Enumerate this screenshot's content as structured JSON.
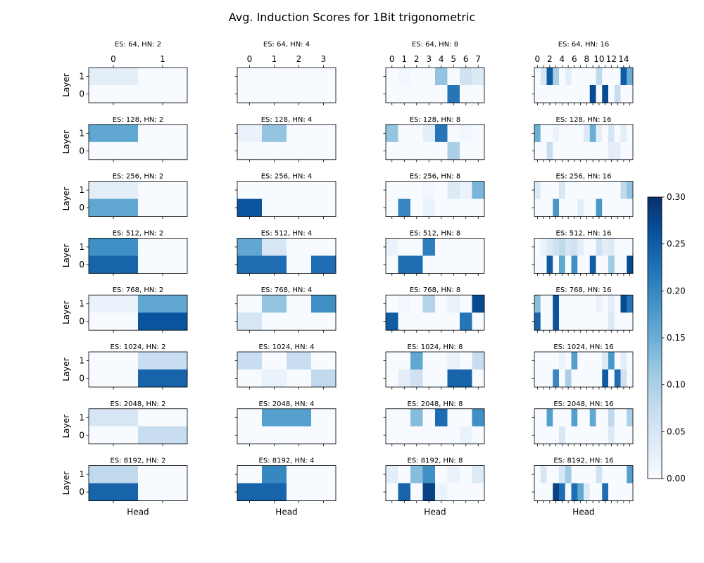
{
  "chart_data": [
    {
      "type": "heatmap",
      "title": "ES: 64, HN: 2",
      "ylabel": "Layer",
      "xlabel": "",
      "rows": [
        1,
        0
      ],
      "x_tick_labels": [
        "0",
        "1"
      ],
      "values": [
        [
          0.03,
          0.0
        ],
        [
          0.0,
          0.0
        ]
      ]
    },
    {
      "type": "heatmap",
      "title": "ES: 64, HN: 4",
      "ylabel": "",
      "xlabel": "",
      "rows": [
        1,
        0
      ],
      "x_tick_labels": [
        "0",
        "1",
        "2",
        "3"
      ],
      "values": [
        [
          0.0,
          0.0,
          0.0,
          0.0
        ],
        [
          0.0,
          0.0,
          0.0,
          0.0
        ]
      ]
    },
    {
      "type": "heatmap",
      "title": "ES: 64, HN: 8",
      "ylabel": "",
      "xlabel": "",
      "rows": [
        1,
        0
      ],
      "x_tick_labels": [
        "0",
        "1",
        "2",
        "3",
        "4",
        "5",
        "6",
        "7"
      ],
      "values": [
        [
          0.0,
          0.01,
          0.0,
          0.0,
          0.12,
          0.0,
          0.06,
          0.04
        ],
        [
          0.0,
          0.0,
          0.0,
          0.0,
          0.0,
          0.22,
          0.0,
          0.0
        ]
      ]
    },
    {
      "type": "heatmap",
      "title": "ES: 64, HN: 16",
      "ylabel": "",
      "xlabel": "",
      "rows": [
        1,
        0
      ],
      "x_tick_labels": [
        "0",
        "",
        "2",
        "",
        "4",
        "",
        "6",
        "",
        "8",
        "",
        "10",
        "",
        "12",
        "",
        "14",
        ""
      ],
      "values": [
        [
          0.0,
          0.05,
          0.25,
          0.1,
          0.0,
          0.03,
          0.0,
          0.0,
          0.0,
          0.0,
          0.08,
          0.0,
          0.0,
          0.0,
          0.25,
          0.15
        ],
        [
          0.0,
          0.0,
          0.0,
          0.0,
          0.0,
          0.0,
          0.0,
          0.0,
          0.0,
          0.27,
          0.0,
          0.27,
          0.0,
          0.07,
          0.0,
          0.0
        ]
      ]
    },
    {
      "type": "heatmap",
      "title": "ES: 128, HN: 2",
      "ylabel": "Layer",
      "xlabel": "",
      "rows": [
        1,
        0
      ],
      "x_tick_labels": [],
      "values": [
        [
          0.16,
          0.0
        ],
        [
          0.0,
          0.0
        ]
      ]
    },
    {
      "type": "heatmap",
      "title": "ES: 128, HN: 4",
      "ylabel": "",
      "xlabel": "",
      "rows": [
        1,
        0
      ],
      "x_tick_labels": [],
      "values": [
        [
          0.02,
          0.12,
          0.0,
          0.0
        ],
        [
          0.0,
          0.0,
          0.0,
          0.0
        ]
      ]
    },
    {
      "type": "heatmap",
      "title": "ES: 128, HN: 8",
      "ylabel": "",
      "xlabel": "",
      "rows": [
        1,
        0
      ],
      "x_tick_labels": [],
      "values": [
        [
          0.12,
          0.0,
          0.0,
          0.03,
          0.22,
          0.0,
          0.01,
          0.0
        ],
        [
          0.0,
          0.0,
          0.0,
          0.0,
          0.0,
          0.1,
          0.0,
          0.0
        ]
      ]
    },
    {
      "type": "heatmap",
      "title": "ES: 128, HN: 16",
      "ylabel": "",
      "xlabel": "",
      "rows": [
        1,
        0
      ],
      "x_tick_labels": [],
      "values": [
        [
          0.15,
          0.0,
          0.0,
          0.02,
          0.0,
          0.0,
          0.0,
          0.0,
          0.04,
          0.15,
          0.03,
          0.0,
          0.05,
          0.0,
          0.03,
          0.0
        ],
        [
          0.0,
          0.0,
          0.07,
          0.0,
          0.0,
          0.0,
          0.0,
          0.0,
          0.0,
          0.0,
          0.0,
          0.0,
          0.03,
          0.03,
          0.0,
          0.0
        ]
      ]
    },
    {
      "type": "heatmap",
      "title": "ES: 256, HN: 2",
      "ylabel": "Layer",
      "xlabel": "",
      "rows": [
        1,
        0
      ],
      "x_tick_labels": [],
      "values": [
        [
          0.03,
          0.0
        ],
        [
          0.16,
          0.0
        ]
      ]
    },
    {
      "type": "heatmap",
      "title": "ES: 256, HN: 4",
      "ylabel": "",
      "xlabel": "",
      "rows": [
        1,
        0
      ],
      "x_tick_labels": [],
      "values": [
        [
          0.0,
          0.0,
          0.0,
          0.0
        ],
        [
          0.26,
          0.0,
          0.0,
          0.0
        ]
      ]
    },
    {
      "type": "heatmap",
      "title": "ES: 256, HN: 8",
      "ylabel": "",
      "xlabel": "",
      "rows": [
        1,
        0
      ],
      "x_tick_labels": [],
      "values": [
        [
          0.0,
          0.0,
          0.0,
          0.01,
          0.0,
          0.04,
          0.02,
          0.14
        ],
        [
          0.0,
          0.2,
          0.0,
          0.02,
          0.0,
          0.0,
          0.0,
          0.0
        ]
      ]
    },
    {
      "type": "heatmap",
      "title": "ES: 256, HN: 16",
      "ylabel": "",
      "xlabel": "",
      "rows": [
        1,
        0
      ],
      "x_tick_labels": [],
      "values": [
        [
          0.04,
          0.0,
          0.0,
          0.0,
          0.05,
          0.0,
          0.0,
          0.0,
          0.0,
          0.0,
          0.0,
          0.0,
          0.0,
          0.0,
          0.08,
          0.12
        ],
        [
          0.0,
          0.0,
          0.0,
          0.18,
          0.0,
          0.0,
          0.0,
          0.03,
          0.0,
          0.0,
          0.18,
          0.0,
          0.0,
          0.0,
          0.0,
          0.0
        ]
      ]
    },
    {
      "type": "heatmap",
      "title": "ES: 512, HN: 2",
      "ylabel": "Layer",
      "xlabel": "",
      "rows": [
        1,
        0
      ],
      "x_tick_labels": [],
      "values": [
        [
          0.19,
          0.0
        ],
        [
          0.24,
          0.0
        ]
      ]
    },
    {
      "type": "heatmap",
      "title": "ES: 512, HN: 4",
      "ylabel": "",
      "xlabel": "",
      "rows": [
        1,
        0
      ],
      "x_tick_labels": [],
      "values": [
        [
          0.16,
          0.05,
          0.0,
          0.0
        ],
        [
          0.23,
          0.23,
          0.0,
          0.23
        ]
      ]
    },
    {
      "type": "heatmap",
      "title": "ES: 512, HN: 8",
      "ylabel": "",
      "xlabel": "",
      "rows": [
        1,
        0
      ],
      "x_tick_labels": [],
      "values": [
        [
          0.02,
          0.0,
          0.0,
          0.21,
          0.0,
          0.0,
          0.0,
          0.0
        ],
        [
          0.0,
          0.23,
          0.23,
          0.0,
          0.0,
          0.0,
          0.0,
          0.0
        ]
      ]
    },
    {
      "type": "heatmap",
      "title": "ES: 512, HN: 16",
      "ylabel": "",
      "xlabel": "",
      "rows": [
        1,
        0
      ],
      "x_tick_labels": [],
      "values": [
        [
          0.0,
          0.02,
          0.04,
          0.06,
          0.08,
          0.05,
          0.06,
          0.03,
          0.0,
          0.0,
          0.06,
          0.03,
          0.04,
          0.0,
          0.0,
          0.0
        ],
        [
          0.0,
          0.0,
          0.25,
          0.0,
          0.16,
          0.0,
          0.19,
          0.0,
          0.0,
          0.25,
          0.0,
          0.0,
          0.11,
          0.0,
          0.0,
          0.27
        ]
      ]
    },
    {
      "type": "heatmap",
      "title": "ES: 768, HN: 2",
      "ylabel": "Layer",
      "xlabel": "",
      "rows": [
        1,
        0
      ],
      "x_tick_labels": [],
      "values": [
        [
          0.02,
          0.16
        ],
        [
          0.0,
          0.26
        ]
      ]
    },
    {
      "type": "heatmap",
      "title": "ES: 768, HN: 4",
      "ylabel": "",
      "xlabel": "",
      "rows": [
        1,
        0
      ],
      "x_tick_labels": [],
      "values": [
        [
          0.0,
          0.12,
          0.0,
          0.19
        ],
        [
          0.05,
          0.0,
          0.0,
          0.0
        ]
      ]
    },
    {
      "type": "heatmap",
      "title": "ES: 768, HN: 8",
      "ylabel": "",
      "xlabel": "",
      "rows": [
        1,
        0
      ],
      "x_tick_labels": [],
      "values": [
        [
          0.0,
          0.01,
          0.0,
          0.09,
          0.0,
          0.02,
          0.0,
          0.27
        ],
        [
          0.25,
          0.0,
          0.0,
          0.0,
          0.0,
          0.0,
          0.22,
          0.0
        ]
      ]
    },
    {
      "type": "heatmap",
      "title": "ES: 768, HN: 16",
      "ylabel": "",
      "xlabel": "",
      "rows": [
        1,
        0
      ],
      "x_tick_labels": [],
      "values": [
        [
          0.13,
          0.0,
          0.0,
          0.26,
          0.0,
          0.0,
          0.0,
          0.0,
          0.0,
          0.0,
          0.02,
          0.0,
          0.03,
          0.0,
          0.27,
          0.22
        ],
        [
          0.24,
          0.0,
          0.0,
          0.26,
          0.0,
          0.0,
          0.0,
          0.0,
          0.0,
          0.0,
          0.0,
          0.0,
          0.04,
          0.0,
          0.0,
          0.0
        ]
      ]
    },
    {
      "type": "heatmap",
      "title": "ES: 1024, HN: 2",
      "ylabel": "Layer",
      "xlabel": "",
      "rows": [
        1,
        0
      ],
      "x_tick_labels": [],
      "values": [
        [
          0.0,
          0.07
        ],
        [
          0.0,
          0.24
        ]
      ]
    },
    {
      "type": "heatmap",
      "title": "ES: 1024, HN: 4",
      "ylabel": "",
      "xlabel": "",
      "rows": [
        1,
        0
      ],
      "x_tick_labels": [],
      "values": [
        [
          0.07,
          0.0,
          0.07,
          0.0
        ],
        [
          0.0,
          0.02,
          0.0,
          0.08
        ]
      ]
    },
    {
      "type": "heatmap",
      "title": "ES: 1024, HN: 8",
      "ylabel": "",
      "xlabel": "",
      "rows": [
        1,
        0
      ],
      "x_tick_labels": [],
      "values": [
        [
          0.0,
          0.0,
          0.16,
          0.0,
          0.0,
          0.02,
          0.0,
          0.07
        ],
        [
          0.0,
          0.03,
          0.06,
          0.0,
          0.0,
          0.24,
          0.24,
          0.0
        ]
      ]
    },
    {
      "type": "heatmap",
      "title": "ES: 1024, HN: 16",
      "ylabel": "",
      "xlabel": "",
      "rows": [
        1,
        0
      ],
      "x_tick_labels": [],
      "values": [
        [
          0.0,
          0.0,
          0.0,
          0.0,
          0.02,
          0.0,
          0.17,
          0.0,
          0.0,
          0.0,
          0.0,
          0.04,
          0.18,
          0.0,
          0.03,
          0.0
        ],
        [
          0.0,
          0.0,
          0.0,
          0.2,
          0.0,
          0.1,
          0.0,
          0.0,
          0.0,
          0.0,
          0.0,
          0.25,
          0.0,
          0.23,
          0.06,
          0.0
        ]
      ]
    },
    {
      "type": "heatmap",
      "title": "ES: 2048, HN: 2",
      "ylabel": "Layer",
      "xlabel": "",
      "rows": [
        1,
        0
      ],
      "x_tick_labels": [],
      "values": [
        [
          0.05,
          0.0
        ],
        [
          0.0,
          0.07
        ]
      ]
    },
    {
      "type": "heatmap",
      "title": "ES: 2048, HN: 4",
      "ylabel": "",
      "xlabel": "",
      "rows": [
        1,
        0
      ],
      "x_tick_labels": [],
      "values": [
        [
          0.0,
          0.17,
          0.17,
          0.0
        ],
        [
          0.0,
          0.0,
          0.0,
          0.0
        ]
      ]
    },
    {
      "type": "heatmap",
      "title": "ES: 2048, HN: 8",
      "ylabel": "",
      "xlabel": "",
      "rows": [
        1,
        0
      ],
      "x_tick_labels": [],
      "values": [
        [
          0.0,
          0.0,
          0.13,
          0.0,
          0.23,
          0.0,
          0.0,
          0.19
        ],
        [
          0.0,
          0.0,
          0.0,
          0.0,
          0.0,
          0.0,
          0.02,
          0.0
        ]
      ]
    },
    {
      "type": "heatmap",
      "title": "ES: 2048, HN: 16",
      "ylabel": "",
      "xlabel": "",
      "rows": [
        1,
        0
      ],
      "x_tick_labels": [],
      "values": [
        [
          0.0,
          0.0,
          0.17,
          0.0,
          0.0,
          0.0,
          0.17,
          0.0,
          0.0,
          0.16,
          0.0,
          0.0,
          0.08,
          0.0,
          0.0,
          0.1
        ],
        [
          0.0,
          0.0,
          0.0,
          0.0,
          0.05,
          0.0,
          0.0,
          0.0,
          0.0,
          0.0,
          0.0,
          0.0,
          0.04,
          0.0,
          0.0,
          0.0
        ]
      ]
    },
    {
      "type": "heatmap",
      "title": "ES: 8192, HN: 2",
      "ylabel": "Layer",
      "xlabel": "Head",
      "rows": [
        1,
        0
      ],
      "x_tick_labels": [],
      "values": [
        [
          0.08,
          0.0
        ],
        [
          0.24,
          0.0
        ]
      ]
    },
    {
      "type": "heatmap",
      "title": "ES: 8192, HN: 4",
      "ylabel": "",
      "xlabel": "Head",
      "rows": [
        1,
        0
      ],
      "x_tick_labels": [],
      "values": [
        [
          0.0,
          0.2,
          0.0,
          0.0
        ],
        [
          0.24,
          0.24,
          0.0,
          0.0
        ]
      ]
    },
    {
      "type": "heatmap",
      "title": "ES: 8192, HN: 8",
      "ylabel": "",
      "xlabel": "Head",
      "rows": [
        1,
        0
      ],
      "x_tick_labels": [],
      "values": [
        [
          0.03,
          0.0,
          0.13,
          0.19,
          0.0,
          0.02,
          0.0,
          0.04
        ],
        [
          0.0,
          0.24,
          0.0,
          0.28,
          0.02,
          0.0,
          0.0,
          0.0
        ]
      ]
    },
    {
      "type": "heatmap",
      "title": "ES: 8192, HN: 16",
      "ylabel": "",
      "xlabel": "Head",
      "rows": [
        1,
        0
      ],
      "x_tick_labels": [],
      "values": [
        [
          0.0,
          0.05,
          0.0,
          0.0,
          0.05,
          0.11,
          0.0,
          0.0,
          0.0,
          0.0,
          0.06,
          0.0,
          0.0,
          0.0,
          0.0,
          0.17
        ],
        [
          0.0,
          0.0,
          0.0,
          0.28,
          0.23,
          0.0,
          0.23,
          0.16,
          0.04,
          0.0,
          0.0,
          0.23,
          0.0,
          0.0,
          0.0,
          0.0
        ]
      ]
    }
  ],
  "suptitle": "Avg. Induction Scores for 1Bit trigonometric",
  "colorbar": {
    "colormap": "Blues",
    "vmin": 0.0,
    "vmax": 0.3,
    "tick_labels": [
      "0.00",
      "0.05",
      "0.10",
      "0.15",
      "0.20",
      "0.25",
      "0.30"
    ]
  }
}
